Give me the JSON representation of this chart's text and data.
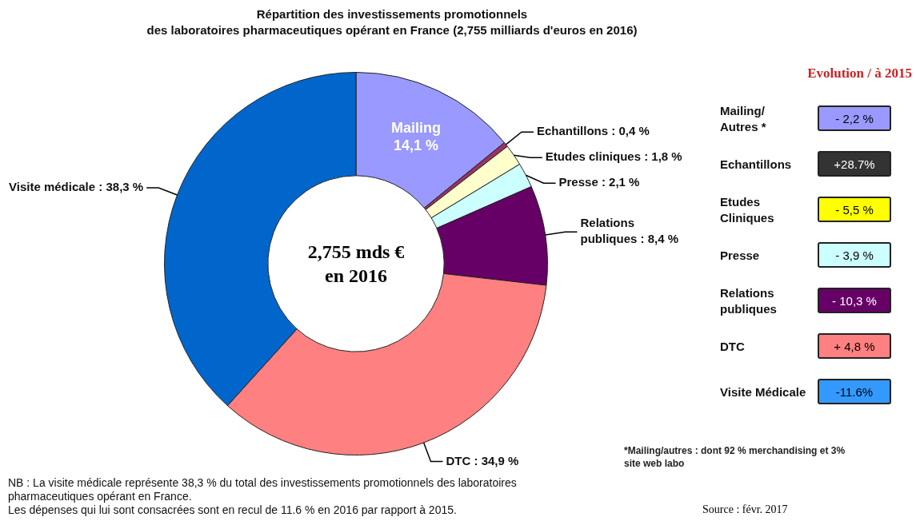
{
  "chart_data": [
    {
      "type": "donut",
      "title": "Répartition des investissements promotionnels\ndes laboratoires pharmaceutiques opérant en France (2,755 milliards d'euros en 2016)",
      "categories": [
        "Mailing",
        "Echantillons",
        "Etudes cliniques",
        "Presse",
        "Relations publiques",
        "DTC",
        "Visite médicale"
      ],
      "values": [
        14.1,
        0.4,
        1.8,
        2.1,
        8.4,
        34.9,
        38.3
      ],
      "value_labels": [
        "14,1 %",
        "0,4 %",
        "1,8 %",
        "2,1 %",
        "8,4 %",
        "34,9 %",
        "38,3 %"
      ],
      "colors": [
        "#9999ff",
        "#993366",
        "#ffffcc",
        "#ccffff",
        "#660066",
        "#ff8080",
        "#0066cc"
      ],
      "annotations": [
        "2,755 mds €\nen 2016",
        "NB : La visite médicale représente 38,3 % du total des investissements promotionnels des laboratoires pharmaceutiques opérant en France.\nLes dépenses qui lui sont consacrées sont en recul de 11.6 % en 2016 par rapport à 2015.",
        "Source : févr. 2017"
      ]
    },
    {
      "type": "other",
      "title": "Evolution / à 2015",
      "categories": [
        "Mailing/\nAutres *",
        "Echantillons",
        "Etudes\nCliniques",
        "Presse",
        "Relations\npubliques",
        "DTC",
        "Visite Médicale"
      ],
      "value_labels": [
        "- 2,2 %",
        "+28.7%",
        "- 5,5 %",
        "- 3,9 %",
        "- 10,3 %",
        "+ 4,8 %",
        "-11.6%"
      ],
      "colors": [
        "#9999ff",
        "#333333",
        "#ffff00",
        "#ccffff",
        "#660066",
        "#ff8080",
        "#3399ff"
      ],
      "annotations": [
        "*Mailing/autres : dont 92 % merchandising et 3% site web labo"
      ]
    }
  ]
}
